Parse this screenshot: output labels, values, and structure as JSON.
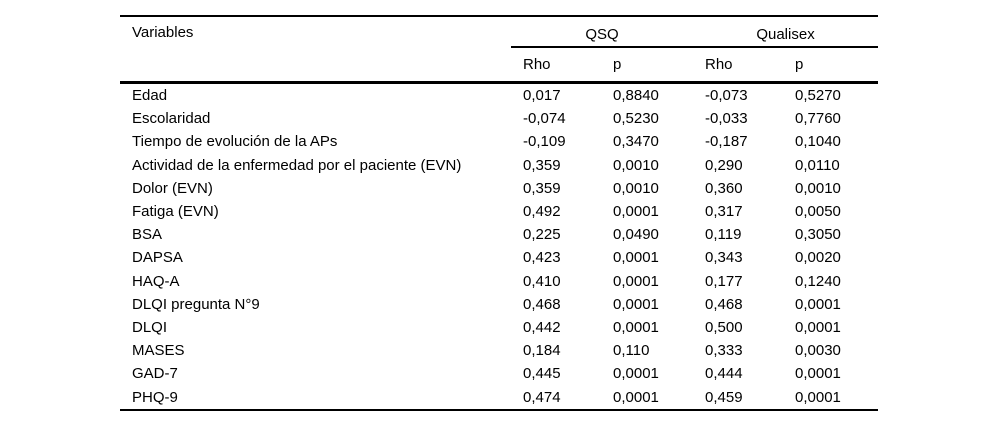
{
  "colors": {
    "background": "#ffffff",
    "text": "#000000",
    "rule": "#000000"
  },
  "table": {
    "variables_header": "Variables",
    "groups": [
      {
        "label": "QSQ"
      },
      {
        "label": "Qualisex"
      }
    ],
    "subheaders": [
      "Rho",
      "p",
      "Rho",
      "p"
    ],
    "rows": [
      [
        "Edad",
        "0,017",
        "0,8840",
        "-0,073",
        "0,5270"
      ],
      [
        "Escolaridad",
        "-0,074",
        "0,5230",
        "-0,033",
        "0,7760"
      ],
      [
        "Tiempo de evolución de la APs",
        "-0,109",
        "0,3470",
        "-0,187",
        "0,1040"
      ],
      [
        "Actividad de la enfermedad por el paciente (EVN)",
        "0,359",
        "0,0010",
        "0,290",
        "0,0110"
      ],
      [
        "Dolor (EVN)",
        "0,359",
        "0,0010",
        "0,360",
        "0,0010"
      ],
      [
        "Fatiga (EVN)",
        "0,492",
        "0,0001",
        "0,317",
        "0,0050"
      ],
      [
        "BSA",
        "0,225",
        "0,0490",
        "0,119",
        "0,3050"
      ],
      [
        "DAPSA",
        "0,423",
        "0,0001",
        "0,343",
        "0,0020"
      ],
      [
        "HAQ-A",
        "0,410",
        "0,0001",
        "0,177",
        "0,1240"
      ],
      [
        "DLQI pregunta N°9",
        "0,468",
        "0,0001",
        "0,468",
        "0,0001"
      ],
      [
        "DLQI",
        "0,442",
        "0,0001",
        "0,500",
        "0,0001"
      ],
      [
        "MASES",
        "0,184",
        "0,110",
        "0,333",
        "0,0030"
      ],
      [
        "GAD-7",
        "0,445",
        "0,0001",
        "0,444",
        "0,0001"
      ],
      [
        "PHQ-9",
        "0,474",
        "0,0001",
        "0,459",
        "0,0001"
      ]
    ]
  }
}
